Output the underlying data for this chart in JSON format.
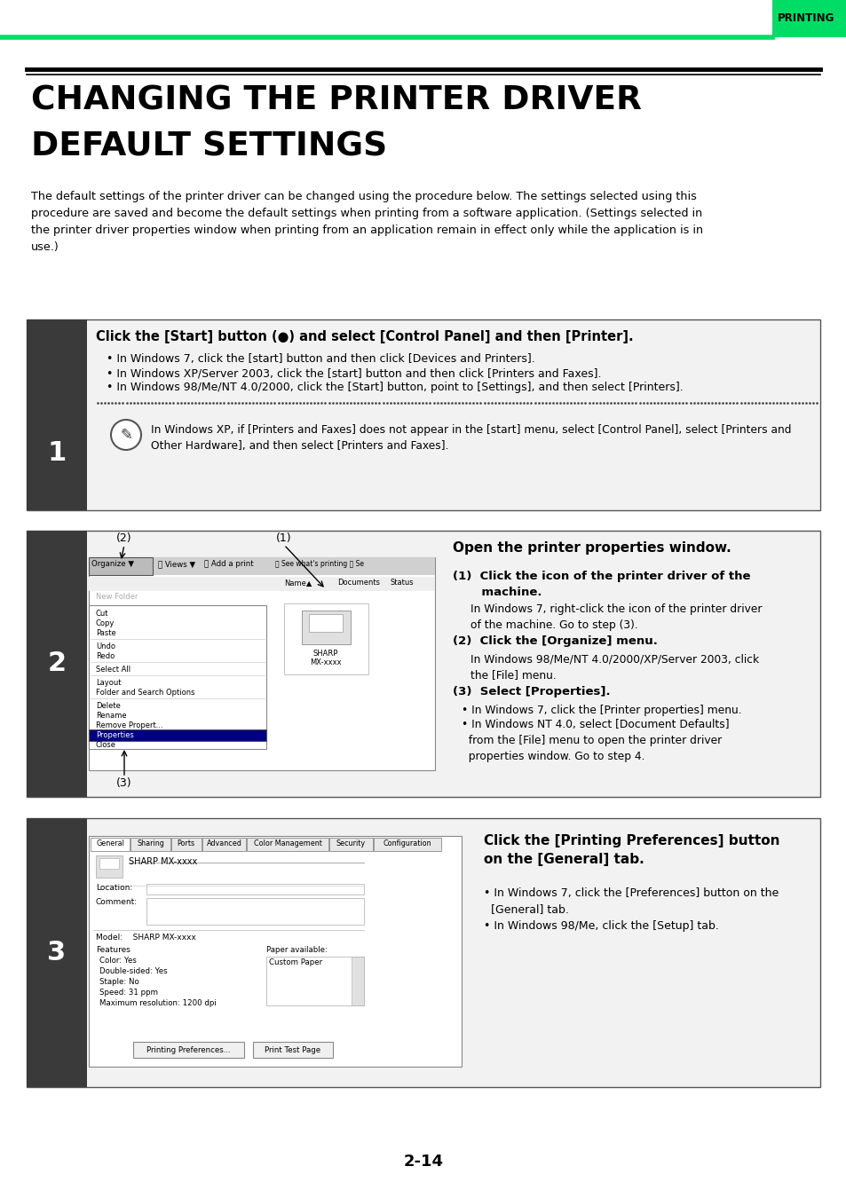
{
  "page_bg": "#ffffff",
  "header_tab_color": "#00dd66",
  "header_tab_text": "PRINTING",
  "header_line_color": "#00dd66",
  "title_line1": "CHANGING THE PRINTER DRIVER",
  "title_line2": "DEFAULT SETTINGS",
  "intro_text": "The default settings of the printer driver can be changed using the procedure below. The settings selected using this\nprocedure are saved and become the default settings when printing from a software application. (Settings selected in\nthe printer driver properties window when printing from an application remain in effect only while the application is in\nuse.)",
  "step1_header": "Click the [Start] button (●) and select [Control Panel] and then [Printer].",
  "step1_bullet1": "• In Windows 7, click the [start] button and then click [Devices and Printers].",
  "step1_bullet2": "• In Windows XP/Server 2003, click the [start] button and then click [Printers and Faxes].",
  "step1_bullet3": "• In Windows 98/Me/NT 4.0/2000, click the [Start] button, point to [Settings], and then select [Printers].",
  "step1_note": "In Windows XP, if [Printers and Faxes] does not appear in the [start] menu, select [Control Panel], select [Printers and\nOther Hardware], and then select [Printers and Faxes].",
  "step2_header": "Open the printer properties window.",
  "step2_sub1_header": "(1)  Click the icon of the printer driver of the\n       machine.",
  "step2_sub1_text": "In Windows 7, right-click the icon of the printer driver\nof the machine. Go to step (3).",
  "step2_sub2_header": "(2)  Click the [Organize] menu.",
  "step2_sub2_text": "In Windows 98/Me/NT 4.0/2000/XP/Server 2003, click\nthe [File] menu.",
  "step2_sub3_header": "(3)  Select [Properties].",
  "step2_sub3_bullet1": "• In Windows 7, click the [Printer properties] menu.",
  "step2_sub3_bullet2": "• In Windows NT 4.0, select [Document Defaults]\n  from the [File] menu to open the printer driver\n  properties window. Go to step 4.",
  "step3_header": "Click the [Printing Preferences] button\non the [General] tab.",
  "step3_bullet1": "• In Windows 7, click the [Preferences] button on the\n  [General] tab.",
  "step3_bullet2": "• In Windows 98/Me, click the [Setup] tab.",
  "step_num_bg": "#3a3a3a",
  "footer_text": "2-14"
}
